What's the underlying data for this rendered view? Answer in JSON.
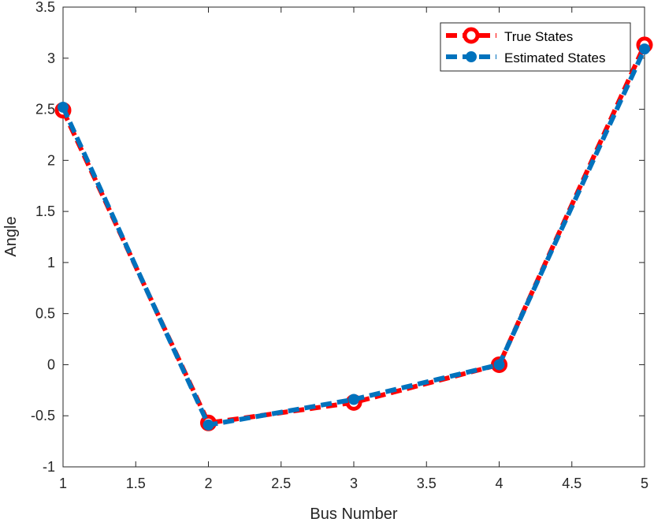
{
  "chart_data": {
    "type": "line",
    "title": "",
    "xlabel": "Bus Number",
    "ylabel": "Angle",
    "xlim": [
      1,
      5
    ],
    "ylim": [
      -1,
      3.5
    ],
    "xticks": [
      "1",
      "1.5",
      "2",
      "2.5",
      "3",
      "3.5",
      "4",
      "4.5",
      "5"
    ],
    "yticks": [
      "-1",
      "-0.5",
      "0",
      "0.5",
      "1",
      "1.5",
      "2",
      "2.5",
      "3",
      "3.5"
    ],
    "x": [
      1,
      2,
      3,
      4,
      5
    ],
    "grid": false,
    "legend_position": "top-right",
    "series": [
      {
        "name": "True States",
        "values": [
          2.49,
          -0.57,
          -0.37,
          0.0,
          3.13
        ],
        "color": "#ff0000",
        "marker": "circle",
        "line_style": "dashed"
      },
      {
        "name": "Estimated States",
        "values": [
          2.52,
          -0.59,
          -0.34,
          0.0,
          3.09
        ],
        "color": "#0072bd",
        "marker": "circle",
        "line_style": "dashed"
      }
    ]
  }
}
